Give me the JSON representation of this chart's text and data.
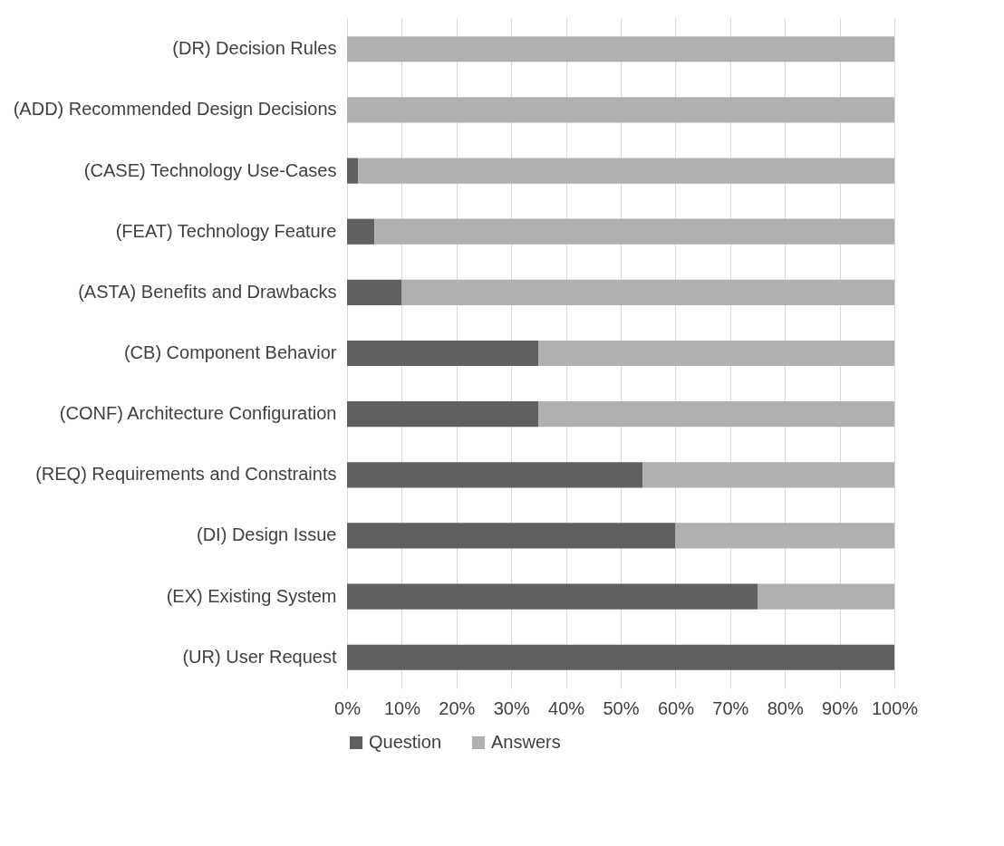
{
  "chart_data": {
    "type": "bar",
    "orientation": "horizontal",
    "stacked": true,
    "categories": [
      "(DR) Decision Rules",
      "(ADD) Recommended Design Decisions",
      "(CASE) Technology Use-Cases",
      "(FEAT) Technology Feature",
      "(ASTA) Benefits and Drawbacks",
      "(CB) Component Behavior",
      "(CONF) Architecture Configuration",
      "(REQ) Requirements and Constraints",
      "(DI) Design Issue",
      "(EX) Existing System",
      "(UR) User Request"
    ],
    "series": [
      {
        "name": "Question",
        "color": "#606060",
        "values": [
          0,
          0,
          2,
          5,
          10,
          35,
          35,
          54,
          60,
          75,
          100
        ]
      },
      {
        "name": "Answers",
        "color": "#b0b0b0",
        "values": [
          100,
          100,
          98,
          95,
          90,
          65,
          65,
          46,
          40,
          25,
          0
        ]
      }
    ],
    "xlim": [
      0,
      100
    ],
    "xticks": [
      {
        "value": 0,
        "label": "0%"
      },
      {
        "value": 10,
        "label": "10%"
      },
      {
        "value": 20,
        "label": "20%"
      },
      {
        "value": 30,
        "label": "30%"
      },
      {
        "value": 40,
        "label": "40%"
      },
      {
        "value": 50,
        "label": "50%"
      },
      {
        "value": 60,
        "label": "60%"
      },
      {
        "value": 70,
        "label": "70%"
      },
      {
        "value": 80,
        "label": "80%"
      },
      {
        "value": 90,
        "label": "90%"
      },
      {
        "value": 100,
        "label": "100%"
      }
    ],
    "grid": "x",
    "legend": "bottom"
  }
}
